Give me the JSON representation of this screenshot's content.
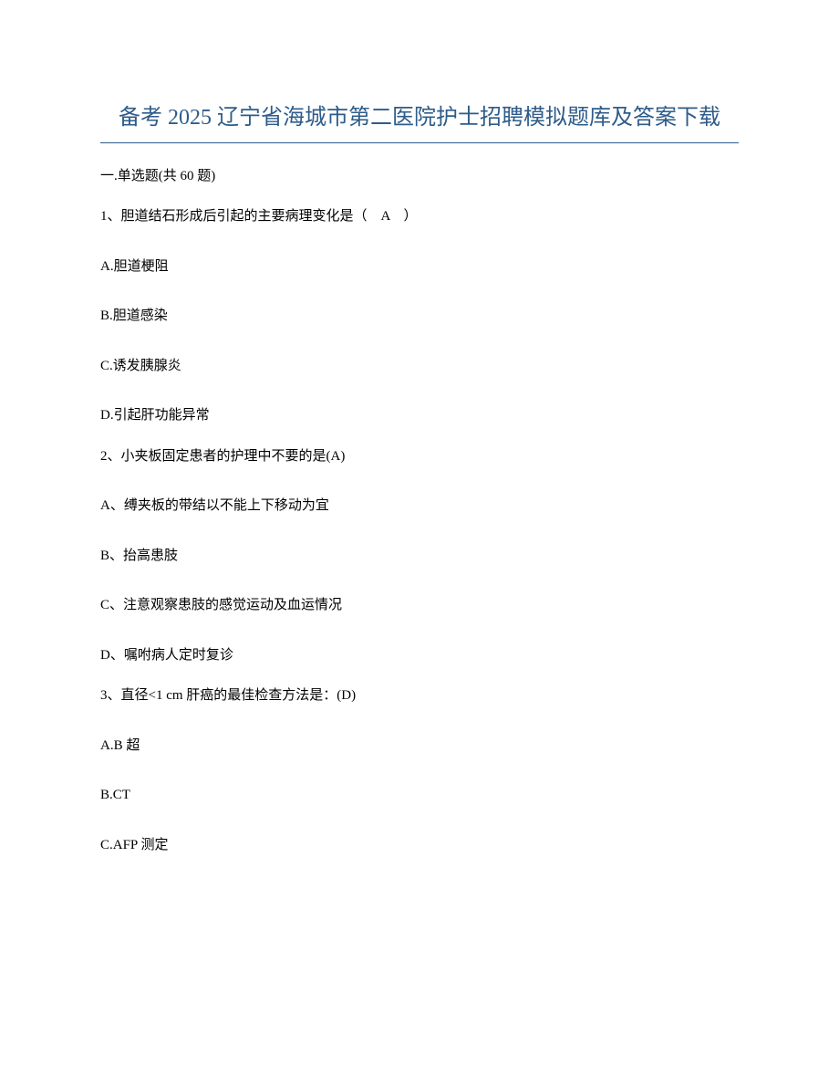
{
  "document": {
    "title": "备考 2025 辽宁省海城市第二医院护士招聘模拟题库及答案下载",
    "title_color": "#2e5c8a",
    "title_fontsize": 24,
    "divider_color": "#2e5c8a",
    "background_color": "#ffffff",
    "text_color": "#000000",
    "body_fontsize": 15,
    "section_header": "一.单选题(共 60 题)",
    "questions": [
      {
        "number": "1",
        "text": "1、胆道结石形成后引起的主要病理变化是（　A　）",
        "options": [
          "A.胆道梗阻",
          "B.胆道感染",
          "C.诱发胰腺炎",
          "D.引起肝功能异常"
        ]
      },
      {
        "number": "2",
        "text": "2、小夹板固定患者的护理中不要的是(A)",
        "options": [
          "A、缚夹板的带结以不能上下移动为宜",
          "B、抬高患肢",
          "C、注意观察患肢的感觉运动及血运情况",
          "D、嘱咐病人定时复诊"
        ]
      },
      {
        "number": "3",
        "text": "3、直径<1 cm 肝癌的最佳检查方法是：(D)",
        "options": [
          "A.B 超",
          "B.CT",
          "C.AFP 测定"
        ]
      }
    ]
  }
}
